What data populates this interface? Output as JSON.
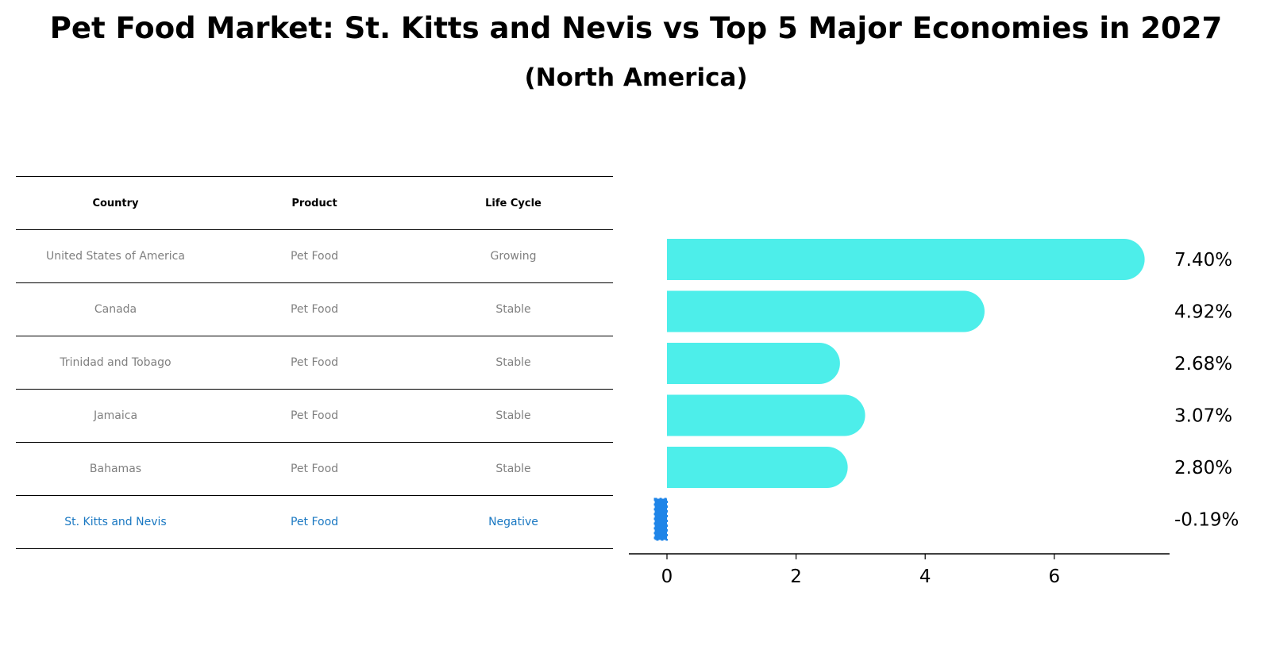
{
  "title": "Pet Food Market: St. Kitts and Nevis vs Top 5 Major Economies in 2027",
  "subtitle": "(North America)",
  "table": {
    "headers": [
      "Country",
      "Product",
      "Life Cycle"
    ],
    "rows": [
      {
        "country": "United States of America",
        "product": "Pet Food",
        "life_cycle": "Growing"
      },
      {
        "country": "Canada",
        "product": "Pet Food",
        "life_cycle": "Stable"
      },
      {
        "country": "Trinidad and Tobago",
        "product": "Pet Food",
        "life_cycle": "Stable"
      },
      {
        "country": "Jamaica",
        "product": "Pet Food",
        "life_cycle": "Stable"
      },
      {
        "country": "Bahamas",
        "product": "Pet Food",
        "life_cycle": "Stable"
      },
      {
        "country": "St. Kitts and Nevis",
        "product": "Pet Food",
        "life_cycle": "Negative"
      }
    ]
  },
  "colors": {
    "bar": "#4deeea",
    "highlight": "#1a78c2",
    "highlight_bar": "#1f85e8",
    "row_text": "#808080"
  },
  "chart_data": {
    "type": "bar",
    "orientation": "horizontal",
    "categories": [
      "United States of America",
      "Canada",
      "Trinidad and Tobago",
      "Jamaica",
      "Bahamas",
      "St. Kitts and Nevis"
    ],
    "values": [
      7.4,
      4.92,
      2.68,
      3.07,
      2.8,
      -0.19
    ],
    "value_labels": [
      "7.40%",
      "4.92%",
      "2.68%",
      "3.07%",
      "2.80%",
      "-0.19%"
    ],
    "xticks": [
      0,
      2,
      4,
      6
    ],
    "xlim": [
      -0.57,
      7.8
    ],
    "grid": false
  }
}
